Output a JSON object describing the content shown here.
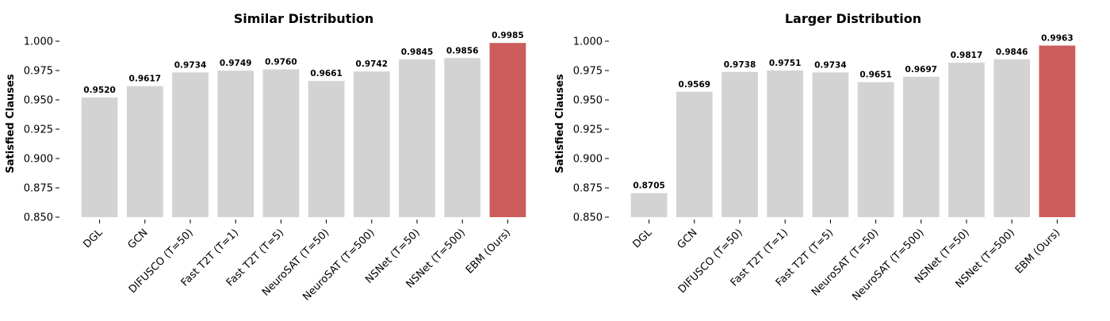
{
  "colors": {
    "bar": "#d3d3d3",
    "highlight": "#cd5c5c",
    "axis": "#000000"
  },
  "chart_data": [
    {
      "type": "bar",
      "title": "Similar Distribution",
      "xlabel": "",
      "ylabel": "Satisfied Clauses",
      "ylim": [
        0.85,
        1.0
      ],
      "yticks": [
        "0.850",
        "0.875",
        "0.900",
        "0.925",
        "0.950",
        "0.975",
        "1.000"
      ],
      "ytick_values": [
        0.85,
        0.875,
        0.9,
        0.925,
        0.95,
        0.975,
        1.0
      ],
      "categories": [
        "DGL",
        "GCN",
        "DIFUSCO (T=50)",
        "Fast T2T (T=1)",
        "Fast T2T (T=5)",
        "NeuroSAT (T=50)",
        "NeuroSAT (T=500)",
        "NSNet (T=50)",
        "NSNet (T=500)",
        "EBM (Ours)"
      ],
      "values": [
        0.952,
        0.9617,
        0.9734,
        0.9749,
        0.976,
        0.9661,
        0.9742,
        0.9845,
        0.9856,
        0.9985
      ],
      "value_labels": [
        "0.9520",
        "0.9617",
        "0.9734",
        "0.9749",
        "0.9760",
        "0.9661",
        "0.9742",
        "0.9845",
        "0.9856",
        "0.9985"
      ],
      "highlight_index": 9,
      "grid": false,
      "legend": "none"
    },
    {
      "type": "bar",
      "title": "Larger Distribution",
      "xlabel": "",
      "ylabel": "Satisfied Clauses",
      "ylim": [
        0.85,
        1.0
      ],
      "yticks": [
        "0.850",
        "0.875",
        "0.900",
        "0.925",
        "0.950",
        "0.975",
        "1.000"
      ],
      "ytick_values": [
        0.85,
        0.875,
        0.9,
        0.925,
        0.95,
        0.975,
        1.0
      ],
      "categories": [
        "DGL",
        "GCN",
        "DIFUSCO (T=50)",
        "Fast T2T (T=1)",
        "Fast T2T (T=5)",
        "NeuroSAT (T=50)",
        "NeuroSAT (T=500)",
        "NSNet (T=50)",
        "NSNet (T=500)",
        "EBM (Ours)"
      ],
      "values": [
        0.8705,
        0.9569,
        0.9738,
        0.9751,
        0.9734,
        0.9651,
        0.9697,
        0.9817,
        0.9846,
        0.9963
      ],
      "value_labels": [
        "0.8705",
        "0.9569",
        "0.9738",
        "0.9751",
        "0.9734",
        "0.9651",
        "0.9697",
        "0.9817",
        "0.9846",
        "0.9963"
      ],
      "highlight_index": 9,
      "grid": false,
      "legend": "none"
    }
  ]
}
